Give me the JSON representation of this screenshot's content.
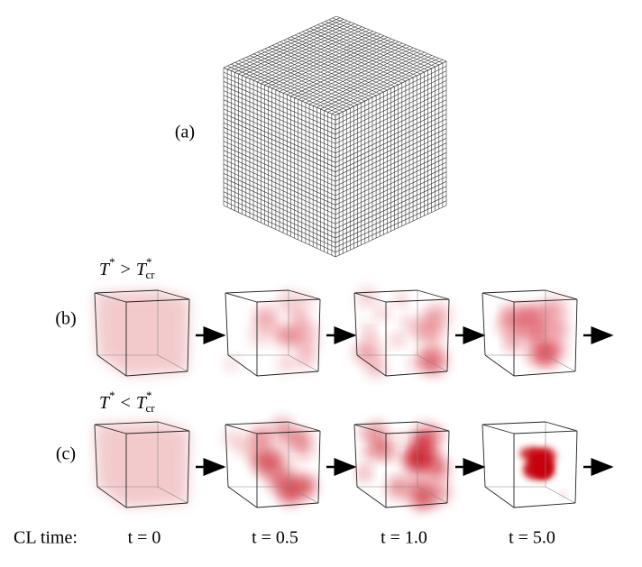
{
  "panels": [
    {
      "label": "(a)"
    },
    {
      "label": "(b)",
      "condition": {
        "symbol": "T",
        "star": "*",
        "relation": ">",
        "subscript": "cr"
      }
    },
    {
      "label": "(c)",
      "condition": {
        "symbol": "T",
        "star": "*",
        "relation": "<",
        "subscript": "cr"
      }
    }
  ],
  "time_axis": {
    "label": "CL time:",
    "times": [
      "t = 0",
      "t = 0.5",
      "t = 1.0",
      "t = 5.0"
    ]
  }
}
